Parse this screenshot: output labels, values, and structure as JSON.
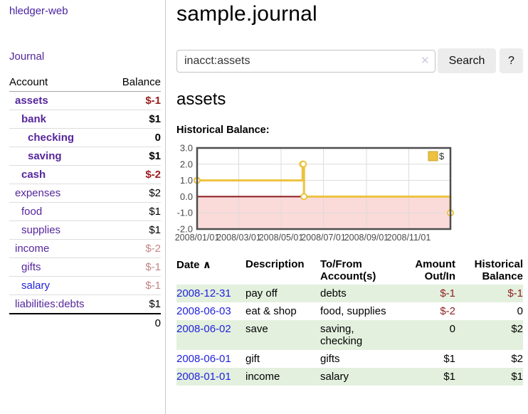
{
  "app": {
    "title": "hledger-web",
    "nav_journal": "Journal"
  },
  "sidebar": {
    "col_account": "Account",
    "col_balance": "Balance",
    "accounts": [
      {
        "name": "assets",
        "depth": 1,
        "bold": true,
        "balance": "$-1",
        "balance_style": "neg-strong"
      },
      {
        "name": "bank",
        "depth": 2,
        "bold": true,
        "balance": "$1",
        "balance_style": ""
      },
      {
        "name": "checking",
        "depth": 3,
        "bold": true,
        "balance": "0",
        "balance_style": ""
      },
      {
        "name": "saving",
        "depth": 3,
        "bold": true,
        "balance": "$1",
        "balance_style": ""
      },
      {
        "name": "cash",
        "depth": 2,
        "bold": true,
        "balance": "$-2",
        "balance_style": "neg-strong"
      },
      {
        "name": "expenses",
        "depth": 1,
        "bold": false,
        "balance": "$2",
        "balance_style": ""
      },
      {
        "name": "food",
        "depth": 2,
        "bold": false,
        "balance": "$1",
        "balance_style": ""
      },
      {
        "name": "supplies",
        "depth": 2,
        "bold": false,
        "balance": "$1",
        "balance_style": ""
      },
      {
        "name": "income",
        "depth": 1,
        "bold": false,
        "balance": "$-2",
        "balance_style": "neg-muted"
      },
      {
        "name": "gifts",
        "depth": 2,
        "bold": false,
        "balance": "$-1",
        "balance_style": "neg-muted"
      },
      {
        "name": "salary",
        "depth": 2,
        "bold": false,
        "balance": "$-1",
        "balance_style": "neg-muted",
        "link_color": "blue"
      },
      {
        "name": "liabilities:debts",
        "depth": 1,
        "bold": false,
        "balance": "$1",
        "balance_style": ""
      }
    ],
    "total": "0"
  },
  "header": {
    "title": "sample.journal"
  },
  "search": {
    "value": "inacct:assets",
    "clear_icon": "✕",
    "button_label": "Search",
    "help_label": "?"
  },
  "account_page": {
    "heading": "assets",
    "chart_label": "Historical Balance:"
  },
  "chart_data": {
    "type": "line",
    "title": "Historical Balance",
    "series": [
      {
        "name": "$",
        "color": "#edc240",
        "step": true,
        "points": [
          [
            "2008-01-01",
            1
          ],
          [
            "2008-06-01",
            2
          ],
          [
            "2008-06-02",
            2
          ],
          [
            "2008-06-03",
            0
          ],
          [
            "2008-12-31",
            -1
          ]
        ]
      }
    ],
    "x_range": [
      "2008-01-01",
      "2008-12-31"
    ],
    "x_ticks": [
      "2008/01/01",
      "2008/03/01",
      "2008/05/01",
      "2008/07/01",
      "2008/09/01",
      "2008/11/01"
    ],
    "y_ticks": [
      3.0,
      2.0,
      1.0,
      0.0,
      -1.0,
      -2.0
    ],
    "ylim": [
      -2,
      3
    ],
    "grid": true,
    "legend": {
      "label": "$",
      "position": "top-right",
      "swatch_color": "#edc240",
      "swatch_border": "#c9a02c"
    },
    "negative_fill": "#fbdada",
    "zero_line_color": "#8b1a1a",
    "border_color": "#4d4d4d",
    "grid_color": "#dcdcdc",
    "tick_text_color": "#4a4a4a"
  },
  "register": {
    "sort_icon": "∧",
    "columns": {
      "date": "Date",
      "description": "Description",
      "accounts": "To/From Account(s)",
      "amount": "Amount Out/In",
      "balance": "Historical Balance"
    },
    "rows": [
      {
        "date": "2008-12-31",
        "description": "pay off",
        "accounts": "debts",
        "amount": "$-1",
        "amount_neg": true,
        "balance": "$-1",
        "balance_neg": true
      },
      {
        "date": "2008-06-03",
        "description": "eat & shop",
        "accounts": "food, supplies",
        "amount": "$-2",
        "amount_neg": true,
        "balance": "0",
        "balance_neg": false
      },
      {
        "date": "2008-06-02",
        "description": "save",
        "accounts": "saving, checking",
        "amount": "0",
        "amount_neg": false,
        "balance": "$2",
        "balance_neg": false
      },
      {
        "date": "2008-06-01",
        "description": "gift",
        "accounts": "gifts",
        "amount": "$1",
        "amount_neg": false,
        "balance": "$2",
        "balance_neg": false
      },
      {
        "date": "2008-01-01",
        "description": "income",
        "accounts": "salary",
        "amount": "$1",
        "amount_neg": false,
        "balance": "$1",
        "balance_neg": false
      }
    ]
  }
}
